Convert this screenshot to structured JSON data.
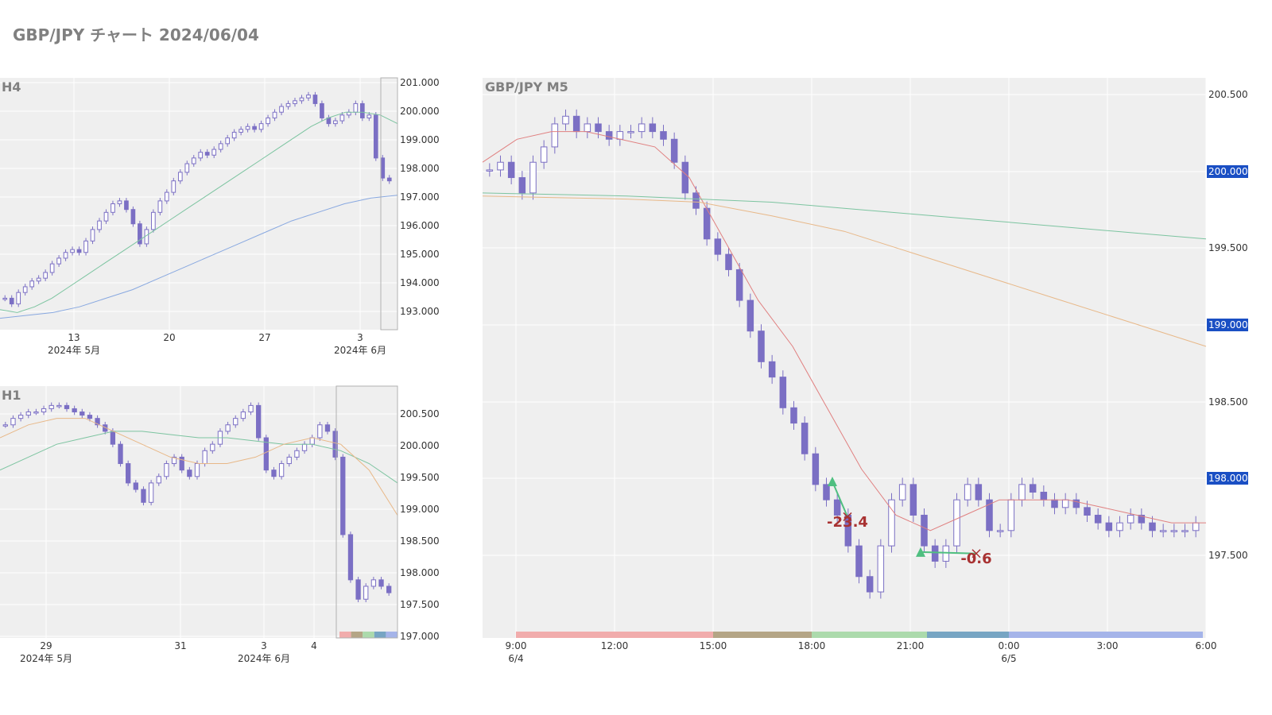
{
  "title": "GBP/JPY チャート 2024/06/04",
  "colors": {
    "candle": "#7b6fc4",
    "ma_short": "#e08080",
    "ma_mid": "#7cc4a0",
    "ma_long": "#e8b888",
    "ma_h4_long": "#88a8e0",
    "price_badge": "#1a4fc4",
    "entry_marker": "#4fbf80",
    "exit_marker": "#a83232",
    "session_colors": [
      "#f0a8a8",
      "#b0a080",
      "#a8d8a8",
      "#70a0c0",
      "#a0b0e8"
    ]
  },
  "chart_data": [
    {
      "type": "candlestick",
      "panel_label": "H4",
      "y_ticks": [
        "201.000",
        "200.000",
        "199.000",
        "198.000",
        "197.000",
        "196.000",
        "195.000",
        "194.000",
        "193.000"
      ],
      "ylim": [
        192.4,
        201.2
      ],
      "x_ticks": [
        {
          "label": "13",
          "sub": "2024年 5月"
        },
        {
          "label": "20",
          "sub": ""
        },
        {
          "label": "27",
          "sub": ""
        },
        {
          "label": "3",
          "sub": "2024年 6月"
        }
      ],
      "series": [
        {
          "name": "",
          "close": [
            193.5,
            193.3,
            193.7,
            193.9,
            194.1,
            194.2,
            194.4,
            194.7,
            194.9,
            195.1,
            195.2,
            195.1,
            195.5,
            195.9,
            196.2,
            196.5,
            196.8,
            196.9,
            196.6,
            196.1,
            195.4,
            195.9,
            196.5,
            196.9,
            197.2,
            197.6,
            197.9,
            198.2,
            198.4,
            198.6,
            198.5,
            198.7,
            198.9,
            199.1,
            199.3,
            199.4,
            199.5,
            199.4,
            199.6,
            199.8,
            200.0,
            200.2,
            200.3,
            200.4,
            200.5,
            200.6,
            200.3,
            199.8,
            199.6,
            199.7,
            199.9,
            200.0,
            200.3,
            199.8,
            199.9,
            198.4,
            197.7,
            197.6
          ]
        },
        {
          "name": "",
          "values": [
            193.1,
            193.0,
            193.2,
            193.5,
            193.9,
            194.3,
            194.7,
            195.1,
            195.5,
            195.9,
            196.3,
            196.7,
            197.1,
            197.5,
            197.9,
            198.3,
            198.7,
            199.1,
            199.5,
            199.8,
            200.0,
            200.0,
            199.9,
            199.6
          ]
        },
        {
          "name": "",
          "values": [
            192.8,
            192.9,
            193.0,
            193.2,
            193.5,
            193.8,
            194.2,
            194.6,
            195.0,
            195.4,
            195.8,
            196.2,
            196.5,
            196.8,
            197.0,
            197.1
          ]
        }
      ]
    },
    {
      "type": "candlestick",
      "panel_label": "H1",
      "y_ticks": [
        "200.500",
        "200.000",
        "199.500",
        "199.000",
        "198.500",
        "198.000",
        "197.500",
        "197.000"
      ],
      "ylim": [
        197.0,
        200.9
      ],
      "x_ticks": [
        {
          "label": "29",
          "sub": "2024年 5月"
        },
        {
          "label": "31",
          "sub": ""
        },
        {
          "label": "3",
          "sub": "2024年 6月"
        },
        {
          "label": "4",
          "sub": ""
        }
      ],
      "series": [
        {
          "name": "",
          "close": [
            200.3,
            200.4,
            200.45,
            200.5,
            200.5,
            200.55,
            200.6,
            200.6,
            200.55,
            200.5,
            200.45,
            200.4,
            200.3,
            200.2,
            200.0,
            199.7,
            199.4,
            199.3,
            199.1,
            199.4,
            199.5,
            199.7,
            199.8,
            199.6,
            199.5,
            199.7,
            199.9,
            200.0,
            200.2,
            200.3,
            200.4,
            200.5,
            200.6,
            200.1,
            199.6,
            199.5,
            199.7,
            199.8,
            199.9,
            200.0,
            200.1,
            200.3,
            200.2,
            199.8,
            198.6,
            197.9,
            197.6,
            197.8,
            197.9,
            197.8,
            197.7
          ]
        },
        {
          "name": "",
          "values": [
            199.6,
            199.8,
            200.0,
            200.1,
            200.2,
            200.2,
            200.15,
            200.1,
            200.1,
            200.05,
            200.0,
            200.0,
            199.9,
            199.7,
            199.4
          ]
        },
        {
          "name": "",
          "values": [
            200.1,
            200.3,
            200.4,
            200.4,
            200.2,
            200.0,
            199.8,
            199.7,
            199.7,
            199.8,
            200.0,
            200.1,
            200.0,
            199.6,
            198.9
          ]
        }
      ]
    },
    {
      "type": "candlestick",
      "panel_label": "GBP/JPY M5",
      "y_ticks": [
        "200.500",
        "200.000",
        "199.500",
        "199.000",
        "198.500",
        "198.000",
        "197.500"
      ],
      "price_badges": [
        "200.000",
        "199.000",
        "198.000"
      ],
      "ylim": [
        197.0,
        200.65
      ],
      "x_ticks": [
        {
          "label": "9:00",
          "sub": "6/4"
        },
        {
          "label": "12:00",
          "sub": ""
        },
        {
          "label": "15:00",
          "sub": ""
        },
        {
          "label": "18:00",
          "sub": ""
        },
        {
          "label": "21:00",
          "sub": ""
        },
        {
          "label": "0:00",
          "sub": "6/5"
        },
        {
          "label": "3:00",
          "sub": ""
        },
        {
          "label": "6:00",
          "sub": ""
        }
      ],
      "series": [
        {
          "name": "",
          "close": [
            200.05,
            200.1,
            200.0,
            199.9,
            200.1,
            200.2,
            200.35,
            200.4,
            200.3,
            200.35,
            200.3,
            200.25,
            200.3,
            200.3,
            200.35,
            200.3,
            200.25,
            200.1,
            199.9,
            199.8,
            199.6,
            199.5,
            199.4,
            199.2,
            199.0,
            198.8,
            198.7,
            198.5,
            198.4,
            198.2,
            198.0,
            197.9,
            197.8,
            197.6,
            197.4,
            197.3,
            197.6,
            197.9,
            198.0,
            197.8,
            197.6,
            197.5,
            197.6,
            197.9,
            198.0,
            197.9,
            197.7,
            197.7,
            197.9,
            198.0,
            197.95,
            197.9,
            197.85,
            197.9,
            197.85,
            197.8,
            197.75,
            197.7,
            197.75,
            197.8,
            197.75,
            197.7,
            197.7,
            197.7,
            197.7,
            197.75
          ]
        },
        {
          "name": "",
          "values": [
            200.1,
            200.25,
            200.3,
            200.3,
            200.25,
            200.2,
            200.0,
            199.6,
            199.2,
            198.9,
            198.5,
            198.1,
            197.8,
            197.7,
            197.8,
            197.9,
            197.9,
            197.9,
            197.85,
            197.8,
            197.75,
            197.75
          ]
        },
        {
          "name": "",
          "values": [
            199.9,
            199.89,
            199.88,
            199.86,
            199.84,
            199.8,
            199.76,
            199.72,
            199.68,
            199.64,
            199.6
          ]
        },
        {
          "name": "",
          "values": [
            199.88,
            199.87,
            199.86,
            199.84,
            199.75,
            199.65,
            199.5,
            199.35,
            199.2,
            199.05,
            198.9
          ]
        }
      ],
      "trades": [
        {
          "entry_price": 198.02,
          "exit_price": 197.79,
          "label": "-23.4"
        },
        {
          "entry_price": 197.56,
          "exit_price": 197.55,
          "label": "-0.6"
        }
      ]
    }
  ]
}
